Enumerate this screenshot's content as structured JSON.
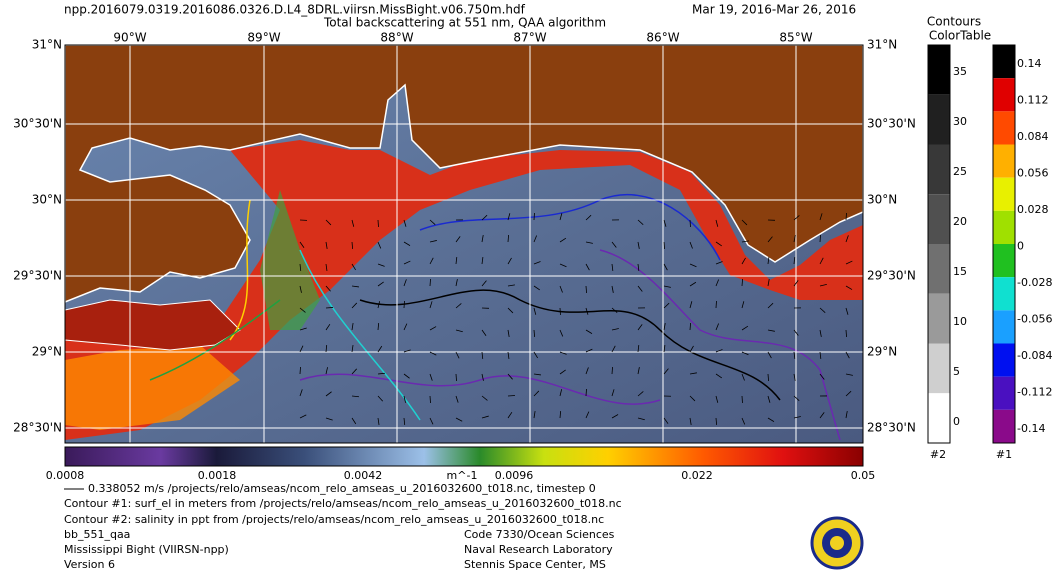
{
  "header": {
    "filename": "npp.2016079.0319.2016086.0326.D.L4_8DRL.viirsn.MissBight.v06.750m.hdf",
    "date_range": "Mar 19, 2016-Mar 26, 2016",
    "title": "Total backscattering at 551 nm, QAA algorithm"
  },
  "map": {
    "lon_labels": [
      "90°W",
      "89°W",
      "88°W",
      "87°W",
      "86°W",
      "85°W"
    ],
    "lat_labels": [
      "31°N",
      "30°30'N",
      "30°N",
      "29°30'N",
      "29°N",
      "28°30'N"
    ]
  },
  "colorbar": {
    "labels": [
      "0.0008",
      "0.0018",
      "0.0042",
      "m^-1",
      "0.0096",
      "0.022",
      "0.05"
    ]
  },
  "contour_legend": {
    "title_line1": "Contours",
    "title_line2": "ColorTable",
    "bar2": {
      "labels": [
        "35",
        "30",
        "25",
        "20",
        "15",
        "10",
        "5",
        "0"
      ],
      "name": "#2"
    },
    "bar1": {
      "labels": [
        "0.14",
        "0.112",
        "0.084",
        "0.056",
        "0.028",
        "0",
        "-0.028",
        "-0.056",
        "-0.084",
        "-0.112",
        "-0.14"
      ],
      "name": "#1"
    }
  },
  "footer": {
    "vector_note": "0.338052 m/s /projects/relo/amseas/ncom_relo_amseas_u_2016032600_t018.nc, timestep 0",
    "contour1": "Contour #1: surf_el in meters from /projects/relo/amseas/ncom_relo_amseas_u_2016032600_t018.nc",
    "contour2": "Contour #2: salinity in ppt from /projects/relo/amseas/ncom_relo_amseas_u_2016032600_t018.nc",
    "product": "bb_551_qaa",
    "region": "Mississippi Bight (VIIRSN-npp)",
    "version": "Version 6",
    "org_code": "Code 7330/Ocean Sciences",
    "org_name": "Naval Research Laboratory",
    "org_location": "Stennis Space Center, MS"
  }
}
